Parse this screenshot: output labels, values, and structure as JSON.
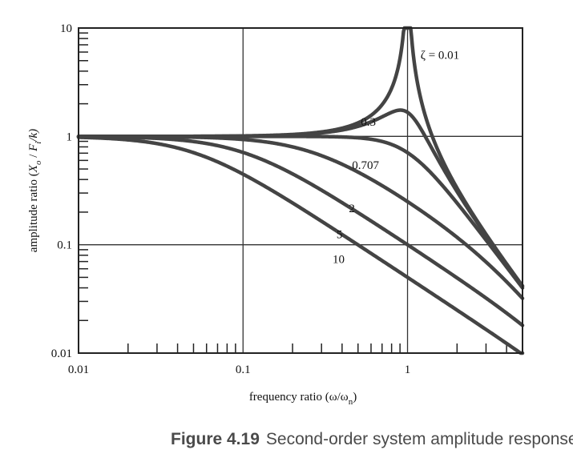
{
  "chart_data": {
    "type": "line",
    "xscale": "log",
    "yscale": "log",
    "xlim": [
      0.01,
      5
    ],
    "ylim": [
      0.01,
      10
    ],
    "grid": true,
    "xlabel": "frequency ratio  (ω/ωn)",
    "xlabel_parts": {
      "main": "frequency ratio  (ω/ω",
      "sub": "n",
      "tail": ")"
    },
    "ylabel": "amplitude ratio (Xo / Fi/k)",
    "ylabel_parts": {
      "pre": "amplitude ratio (",
      "x": "X",
      "xsub": "o",
      "mid": " / ",
      "f": "F",
      "fsub": "i",
      "post": "/k)"
    },
    "x_ticks": [
      {
        "value": 0.01,
        "label": "0.01"
      },
      {
        "value": 0.1,
        "label": "0.1"
      },
      {
        "value": 1,
        "label": "1"
      }
    ],
    "y_ticks": [
      {
        "value": 0.01,
        "label": "0.01"
      },
      {
        "value": 0.1,
        "label": "0.1"
      },
      {
        "value": 1,
        "label": "1"
      },
      {
        "value": 10,
        "label": "10"
      }
    ],
    "series": [
      {
        "name": "ζ = 0.01",
        "zeta": 0.01,
        "label": "ζ = 0.01",
        "label_at": [
          1.2,
          5.2
        ]
      },
      {
        "name": "0.3",
        "zeta": 0.3,
        "label": "0.3",
        "label_at": [
          0.52,
          1.25
        ]
      },
      {
        "name": "0.707",
        "zeta": 0.707,
        "label": "0.707",
        "label_at": [
          0.46,
          0.5
        ]
      },
      {
        "name": "2",
        "zeta": 2,
        "label": "2",
        "label_at": [
          0.44,
          0.2
        ]
      },
      {
        "name": "5",
        "zeta": 5,
        "label": "5",
        "label_at": [
          0.37,
          0.115
        ]
      },
      {
        "name": "10",
        "zeta": 10,
        "label": "10",
        "label_at": [
          0.35,
          0.068
        ]
      }
    ]
  },
  "caption": {
    "figure": "Figure 4.19",
    "text": "Second-order system amplitude response."
  }
}
